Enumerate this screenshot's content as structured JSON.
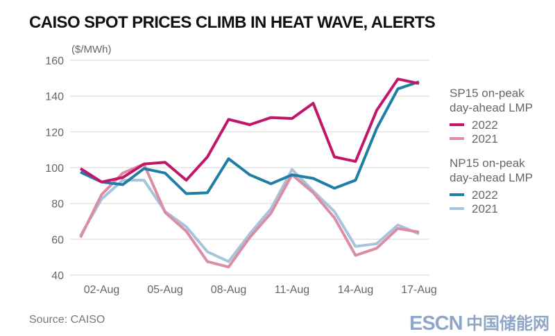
{
  "chart_data": {
    "type": "line",
    "title": "CAISO SPOT PRICES CLIMB IN HEAT WAVE, ALERTS",
    "ylabel": "($/MWh)",
    "xlabel": "",
    "ylim": [
      40,
      160
    ],
    "yticks": [
      40,
      60,
      80,
      100,
      120,
      140,
      160
    ],
    "grid": true,
    "x": [
      "01-Aug",
      "02-Aug",
      "03-Aug",
      "04-Aug",
      "05-Aug",
      "06-Aug",
      "07-Aug",
      "08-Aug",
      "09-Aug",
      "10-Aug",
      "11-Aug",
      "12-Aug",
      "13-Aug",
      "14-Aug",
      "15-Aug",
      "16-Aug",
      "17-Aug"
    ],
    "xtick_labels": [
      "02-Aug",
      "05-Aug",
      "08-Aug",
      "11-Aug",
      "14-Aug",
      "17-Aug"
    ],
    "legend_placement": "right",
    "legend_groups": [
      {
        "title_line1": "SP15 on-peak",
        "title_line2": "day-ahead LMP",
        "items": [
          "2022",
          "2021"
        ]
      },
      {
        "title_line1": "NP15 on-peak",
        "title_line2": "day-ahead LMP",
        "items": [
          "2022",
          "2021"
        ]
      }
    ],
    "series": [
      {
        "name": "SP15 on-peak day-ahead LMP 2022",
        "color": "#c0176b",
        "values": [
          99.5,
          92,
          94.5,
          102,
          103,
          93,
          106,
          127,
          124,
          128,
          127.5,
          136,
          106,
          103.5,
          132,
          149.5,
          147
        ]
      },
      {
        "name": "SP15 on-peak day-ahead LMP 2021",
        "color": "#dc8da6",
        "values": [
          61,
          85,
          97,
          102,
          75,
          64.5,
          47.5,
          44.5,
          61,
          74.5,
          96,
          86,
          72,
          51,
          55,
          66,
          64
        ]
      },
      {
        "name": "NP15 on-peak day-ahead LMP 2022",
        "color": "#1f7ea6",
        "values": [
          97.5,
          92,
          90.5,
          99.5,
          97,
          85.5,
          86,
          105,
          96,
          91,
          96,
          94,
          88.5,
          93,
          122,
          144,
          148
        ]
      },
      {
        "name": "NP15 on-peak day-ahead LMP 2021",
        "color": "#a8c4dc",
        "values": [
          62,
          82.5,
          93,
          93,
          75.5,
          67,
          53,
          47.5,
          63,
          77,
          99,
          87,
          75.5,
          56,
          57.5,
          68,
          63
        ]
      }
    ],
    "source": "Source: CAISO"
  },
  "watermark": {
    "latin": "ESCN",
    "chinese": "中国储能网",
    "color": "#8fa6c6",
    "accent": "#d0343a"
  }
}
